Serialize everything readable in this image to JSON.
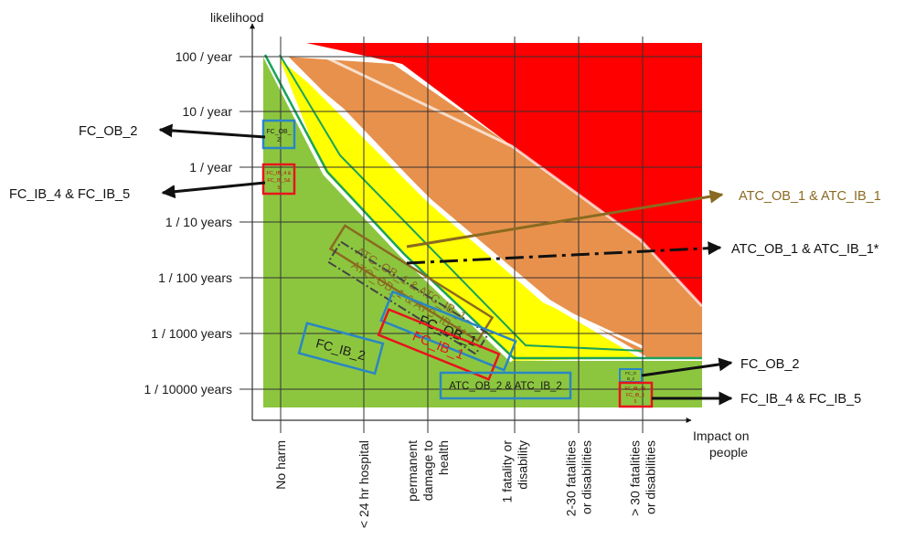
{
  "chart_data": {
    "type": "risk-matrix",
    "ylabel": "likelihood",
    "xlabel": "Impact on people",
    "y_ticks": [
      "100 / year",
      "10 / year",
      "1 / year",
      "1 / 10 years",
      "1 / 100 years",
      "1 / 1000 years",
      "1 / 10000 years"
    ],
    "x_ticks": [
      "No harm",
      "< 24 hr hospital",
      "permanent damage to health",
      "1 fatality or disability",
      "2-30 fatalities or disabilities",
      "> 30 fatalities or disabilities"
    ],
    "zones": [
      {
        "level": "acceptable",
        "color": "#8cc63f"
      },
      {
        "level": "low",
        "color": "#ffff00"
      },
      {
        "level": "high",
        "color": "#e8914d"
      },
      {
        "level": "unacceptable",
        "color": "#ff0000"
      }
    ],
    "boxes": [
      {
        "id": "fc-ob2-left",
        "label": "FC_OB_\n2",
        "color": "#2a86c3"
      },
      {
        "id": "fc-ib45-left",
        "label": "FC_IB_4 &\nFC_IB_5&\n5",
        "color": "#e8141c"
      },
      {
        "id": "fc-ib2",
        "label": "FC_IB_2",
        "color": "#2a86c3"
      },
      {
        "id": "atc-ob1",
        "label": "ATC_OB_1 & ATC_IB_1",
        "color": "#8a6a20"
      },
      {
        "id": "fc-ob1",
        "label": "FC_OB_1",
        "color": "#2a86c3"
      },
      {
        "id": "fc-ib1",
        "label": "FC_IB_1",
        "color": "#e8141c"
      },
      {
        "id": "atc-ob2",
        "label": "ATC_OB_2 & ATC_IB_2",
        "color": "#2a86c3"
      },
      {
        "id": "fc-ob2-right",
        "label": "FC_O\nB_2",
        "color": "#2a86c3"
      },
      {
        "id": "fc-ib45-right",
        "label": "FC_IB_4&\nFC_IB_5\n5",
        "color": "#e8141c"
      }
    ],
    "callouts": [
      {
        "id": "c1",
        "text": "FC_OB_2",
        "color": "#111111"
      },
      {
        "id": "c2",
        "text": "FC_IB_4 & FC_IB_5",
        "color": "#111111"
      },
      {
        "id": "c3",
        "text": "ATC_OB_1 & ATC_IB_1",
        "color": "#8a6a20"
      },
      {
        "id": "c4",
        "text": "ATC_OB_1 & ATC_IB_1*",
        "color": "#111111"
      },
      {
        "id": "c5",
        "text": "FC_OB_2",
        "color": "#111111"
      },
      {
        "id": "c6",
        "text": "FC_IB_4 & FC_IB_5",
        "color": "#111111"
      }
    ],
    "grid": true
  }
}
